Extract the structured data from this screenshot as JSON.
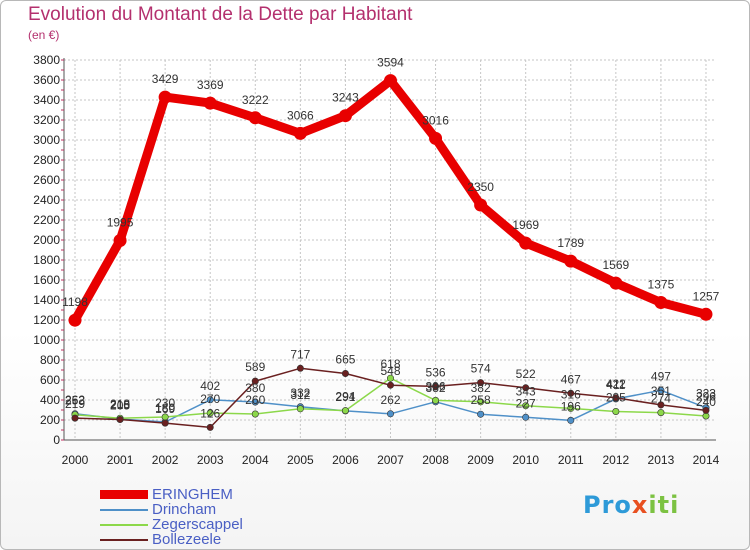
{
  "chart_data": {
    "type": "line",
    "title": "Evolution du Montant de la Dette par Habitant",
    "subtitle": "(en €)",
    "xlabel": "",
    "ylabel": "",
    "ylim": [
      0,
      3800
    ],
    "ytick_step": 200,
    "categories": [
      "2000",
      "2001",
      "2002",
      "2003",
      "2004",
      "2005",
      "2006",
      "2007",
      "2008",
      "2009",
      "2010",
      "2011",
      "2012",
      "2013",
      "2014"
    ],
    "series": [
      {
        "name": "ERINGHEM",
        "color": "#e80000",
        "values": [
          1198,
          1995,
          3429,
          3369,
          3222,
          3066,
          3243,
          3594,
          3016,
          2350,
          1969,
          1789,
          1569,
          1375,
          1257
        ]
      },
      {
        "name": "Drincham",
        "color": "#4f90c8",
        "values": [
          262,
          210,
          180,
          402,
          380,
          332,
          291,
          262,
          382,
          258,
          227,
          196,
          411,
          497,
          323
        ]
      },
      {
        "name": "Zegerscappel",
        "color": "#8cd84a",
        "values": [
          253,
          218,
          230,
          270,
          260,
          312,
          294,
          618,
          396,
          382,
          343,
          316,
          285,
          274,
          240
        ]
      },
      {
        "name": "Bollezeele",
        "color": "#6a2020",
        "values": [
          219,
          205,
          169,
          126,
          589,
          717,
          665,
          548,
          536,
          574,
          522,
          467,
          422,
          351,
          296
        ]
      }
    ]
  },
  "brand": {
    "prefix": "Pro",
    "x": "x",
    "suffix": "iti"
  }
}
